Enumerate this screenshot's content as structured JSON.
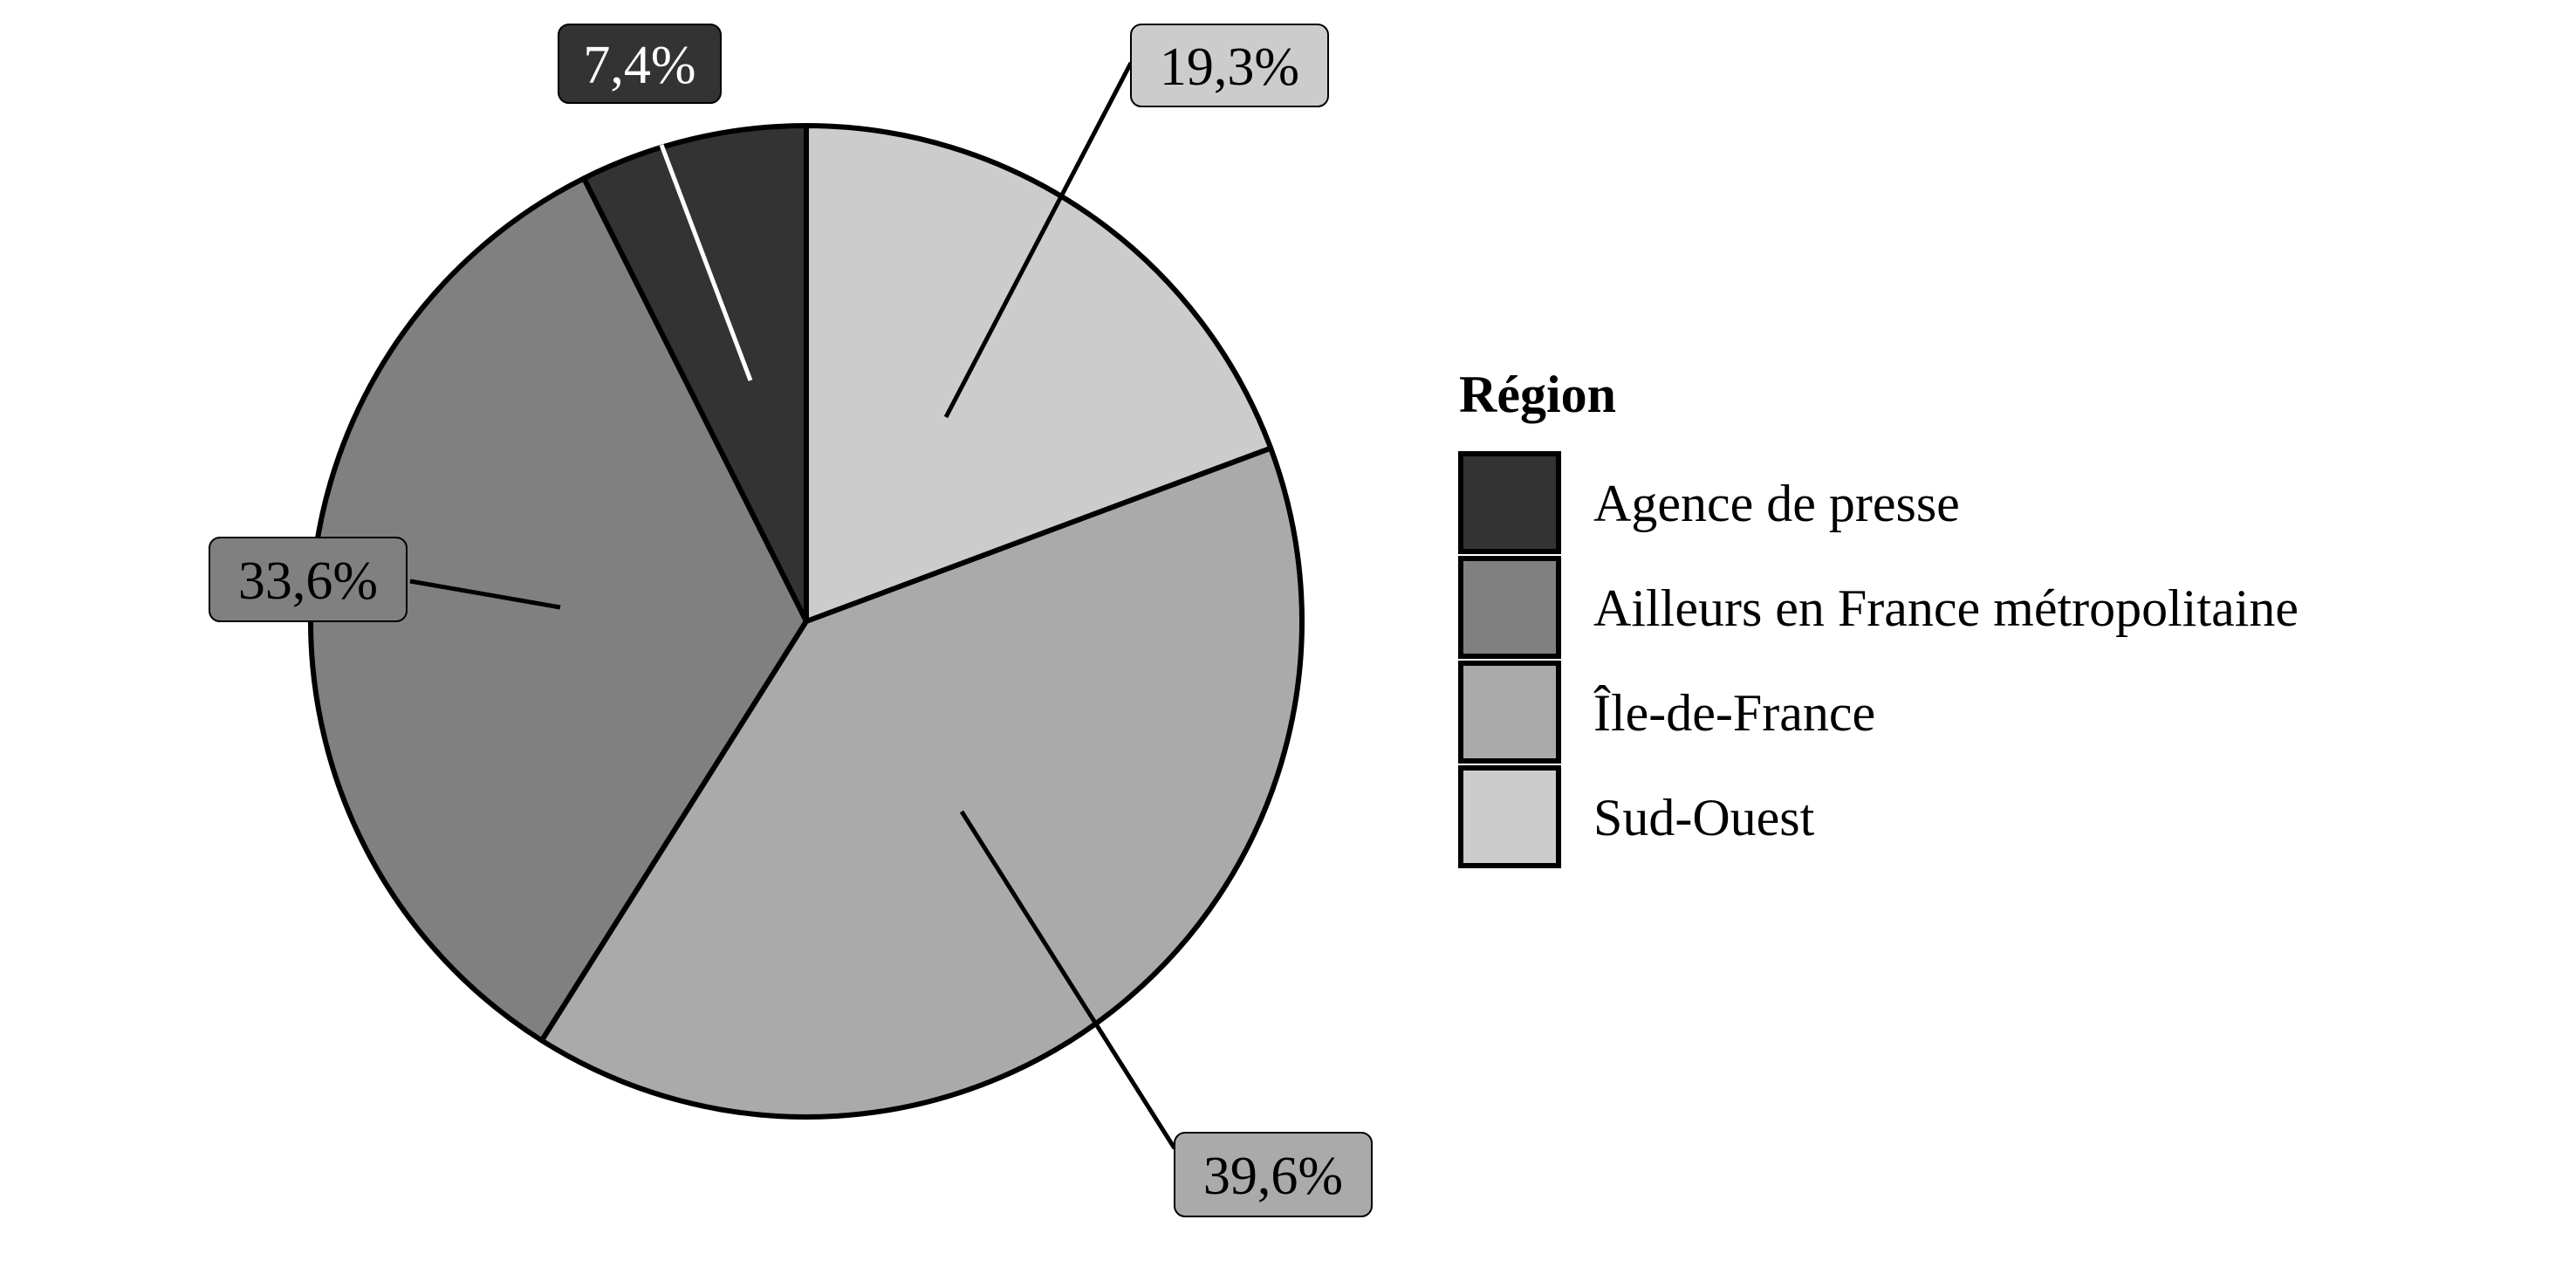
{
  "chart_data": {
    "type": "pie",
    "legend_title": "Région",
    "legend_position": "right",
    "categories": [
      "Agence de presse",
      "Ailleurs en France métropolitaine",
      "Île-de-France",
      "Sud-Ouest"
    ],
    "values": [
      7.4,
      33.6,
      39.6,
      19.3
    ],
    "labels": [
      "7,4%",
      "33,6%",
      "39,6%",
      "19,3%"
    ],
    "colors": [
      "#333333",
      "#808080",
      "#aaaaaa",
      "#cccccc"
    ],
    "label_text_colors": [
      "#ffffff",
      "#000000",
      "#000000",
      "#000000"
    ],
    "start": "12 o'clock",
    "direction": "counter-clockwise"
  }
}
